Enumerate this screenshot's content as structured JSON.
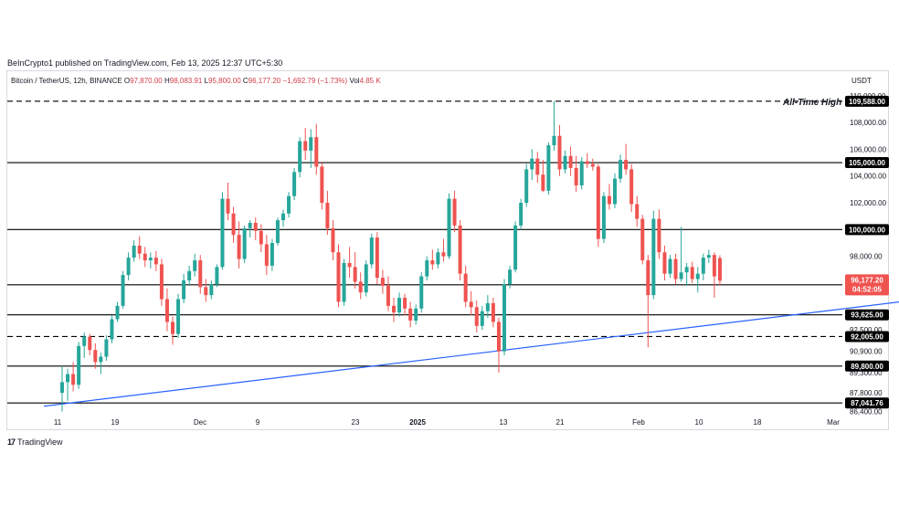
{
  "header": {
    "publisher_line": "BeInCrypto1 published on TradingView.com, Feb 13, 2025 12:37 UTC+5:30"
  },
  "legend": {
    "symbol": "Bitcoin / TetherUS, 12h, BINANCE",
    "o_label": "O",
    "o_value": "97,870.00",
    "h_label": "H",
    "h_value": "98,083.91",
    "l_label": "L",
    "l_value": "95,800.00",
    "c_label": "C",
    "c_value": "96,177.20",
    "change": "−1,692.79 (−1.73%)",
    "vol_label": "Vol",
    "vol_value": "4.85 K"
  },
  "currency": "USDT",
  "footer": {
    "logo_mark": "17",
    "logo_text": "TradingView"
  },
  "colors": {
    "up": "#26a69a",
    "down": "#ef5350",
    "trendline": "#2962ff",
    "level": "#000000",
    "price_tag": "#ef5350"
  },
  "chart_data": {
    "type": "candlestick",
    "y_range": [
      86100,
      110600
    ],
    "y_ticks": [
      "110,000.00",
      "108,000.00",
      "106,000.00",
      "104,000.00",
      "102,000.00",
      "100,000.00",
      "98,000.00",
      "92,500.00",
      "90,900.00",
      "89,300.00",
      "87,800.00",
      "86,400.00"
    ],
    "x_ticks": [
      {
        "label": "11",
        "bold": false
      },
      {
        "label": "19",
        "bold": false
      },
      {
        "label": "Dec",
        "bold": false
      },
      {
        "label": "9",
        "bold": false
      },
      {
        "label": "23",
        "bold": false
      },
      {
        "label": "2025",
        "bold": true
      },
      {
        "label": "13",
        "bold": false
      },
      {
        "label": "21",
        "bold": false
      },
      {
        "label": "Feb",
        "bold": false
      },
      {
        "label": "10",
        "bold": false
      },
      {
        "label": "18",
        "bold": false
      },
      {
        "label": "Mar",
        "bold": false
      }
    ],
    "levels": [
      {
        "value": 109588.0,
        "label": "109,588.00",
        "style": "dashed"
      },
      {
        "value": 105000.0,
        "label": "105,000.00",
        "style": "solid"
      },
      {
        "value": 100000.0,
        "label": "100,000.00",
        "style": "solid"
      },
      {
        "value": 95869.29,
        "label": "95,869.29",
        "style": "solid"
      },
      {
        "value": 93625.0,
        "label": "93,625.00",
        "style": "solid"
      },
      {
        "value": 92005.0,
        "label": "92,005.00",
        "style": "dashed"
      },
      {
        "value": 89800.0,
        "label": "89,800.00",
        "style": "solid"
      },
      {
        "value": 87041.76,
        "label": "87,041.76",
        "style": "solid"
      }
    ],
    "annotation": "All-Time High",
    "last_price": {
      "value": 96177.2,
      "label": "96,177.20",
      "countdown": "04:52:05"
    },
    "trendline": {
      "from": {
        "date": "2024-11-11",
        "price": 86800
      },
      "to": {
        "date": "2025-02-21",
        "price": 97300
      }
    },
    "candles": [
      [
        87800,
        89800,
        86400,
        88600
      ],
      [
        88600,
        89600,
        87200,
        89200
      ],
      [
        89200,
        90100,
        87900,
        88400
      ],
      [
        88400,
        91600,
        88100,
        91300
      ],
      [
        91300,
        92300,
        90400,
        92000
      ],
      [
        92000,
        92200,
        90600,
        91000
      ],
      [
        91000,
        91500,
        89600,
        90100
      ],
      [
        90100,
        90800,
        89200,
        90500
      ],
      [
        90500,
        92100,
        90200,
        91800
      ],
      [
        91800,
        93600,
        91500,
        93300
      ],
      [
        93300,
        94600,
        93100,
        94300
      ],
      [
        94300,
        96900,
        94100,
        96600
      ],
      [
        96600,
        98300,
        96200,
        97900
      ],
      [
        97900,
        99200,
        97600,
        98800
      ],
      [
        98800,
        99500,
        97800,
        98200
      ],
      [
        98200,
        98700,
        97200,
        97700
      ],
      [
        97700,
        98300,
        97100,
        97900
      ],
      [
        97900,
        98400,
        96900,
        97400
      ],
      [
        97400,
        97800,
        94300,
        94800
      ],
      [
        94800,
        95600,
        92400,
        93100
      ],
      [
        93100,
        93500,
        91400,
        92200
      ],
      [
        92200,
        95200,
        91900,
        94800
      ],
      [
        94800,
        96700,
        94500,
        96200
      ],
      [
        96200,
        97300,
        95800,
        96900
      ],
      [
        96900,
        98200,
        96500,
        97700
      ],
      [
        97700,
        98100,
        95200,
        95700
      ],
      [
        95700,
        96300,
        94600,
        95100
      ],
      [
        95100,
        96200,
        94800,
        95900
      ],
      [
        95900,
        97400,
        95700,
        97200
      ],
      [
        97200,
        102800,
        97000,
        102300
      ],
      [
        102300,
        103500,
        100700,
        101200
      ],
      [
        101200,
        101700,
        99000,
        99600
      ],
      [
        99600,
        100600,
        97100,
        97800
      ],
      [
        97800,
        100300,
        97500,
        100100
      ],
      [
        100100,
        100700,
        99400,
        100500
      ],
      [
        100500,
        100900,
        99200,
        99900
      ],
      [
        99900,
        100400,
        98300,
        98900
      ],
      [
        98900,
        99600,
        96600,
        97300
      ],
      [
        97300,
        99300,
        96900,
        99000
      ],
      [
        99000,
        100900,
        98800,
        100700
      ],
      [
        100700,
        101500,
        100200,
        101200
      ],
      [
        101200,
        102800,
        100900,
        102500
      ],
      [
        102500,
        104600,
        102200,
        104300
      ],
      [
        104300,
        106900,
        103900,
        106600
      ],
      [
        106600,
        107600,
        105200,
        105900
      ],
      [
        105900,
        107500,
        104600,
        106900
      ],
      [
        106900,
        107900,
        104100,
        104700
      ],
      [
        104700,
        105000,
        101500,
        102000
      ],
      [
        102000,
        102900,
        99600,
        100100
      ],
      [
        100100,
        100700,
        97700,
        98300
      ],
      [
        98300,
        98900,
        94200,
        94600
      ],
      [
        94600,
        97800,
        94300,
        97500
      ],
      [
        97500,
        98700,
        96400,
        97200
      ],
      [
        97200,
        98300,
        95600,
        96100
      ],
      [
        96100,
        96800,
        94800,
        95300
      ],
      [
        95300,
        97700,
        95000,
        97400
      ],
      [
        97400,
        99700,
        97100,
        99400
      ],
      [
        99400,
        99800,
        95900,
        96400
      ],
      [
        96400,
        97000,
        95200,
        95800
      ],
      [
        95800,
        96500,
        93900,
        94300
      ],
      [
        94300,
        94900,
        93100,
        93800
      ],
      [
        93800,
        95300,
        93500,
        94900
      ],
      [
        94900,
        95200,
        93600,
        94100
      ],
      [
        94100,
        94600,
        92700,
        93200
      ],
      [
        93200,
        94400,
        92900,
        94100
      ],
      [
        94100,
        96800,
        93800,
        96500
      ],
      [
        96500,
        98000,
        96200,
        97700
      ],
      [
        97700,
        98500,
        97000,
        97400
      ],
      [
        97400,
        98600,
        97100,
        98300
      ],
      [
        98300,
        99300,
        97600,
        98000
      ],
      [
        98000,
        102700,
        97800,
        102300
      ],
      [
        102300,
        102900,
        99800,
        100300
      ],
      [
        100300,
        100700,
        96200,
        96700
      ],
      [
        96700,
        97300,
        94200,
        94600
      ],
      [
        94600,
        95400,
        93600,
        94200
      ],
      [
        94200,
        94700,
        92300,
        92800
      ],
      [
        92800,
        94300,
        92500,
        93900
      ],
      [
        93900,
        95100,
        93400,
        94500
      ],
      [
        94500,
        94900,
        92700,
        93100
      ],
      [
        93100,
        93400,
        89300,
        90900
      ],
      [
        90900,
        96300,
        90600,
        95900
      ],
      [
        95900,
        97300,
        95600,
        97000
      ],
      [
        97000,
        100600,
        96800,
        100300
      ],
      [
        100300,
        102300,
        100000,
        102000
      ],
      [
        102000,
        104900,
        101700,
        104500
      ],
      [
        104500,
        106000,
        103700,
        105300
      ],
      [
        105300,
        105800,
        103500,
        104100
      ],
      [
        104100,
        105200,
        102800,
        102900
      ],
      [
        102900,
        106500,
        102600,
        106300
      ],
      [
        106300,
        109600,
        105900,
        107000
      ],
      [
        107000,
        107800,
        104000,
        104500
      ],
      [
        104500,
        105900,
        104200,
        105500
      ],
      [
        105500,
        106200,
        104000,
        104600
      ],
      [
        104600,
        105500,
        102800,
        103300
      ],
      [
        103300,
        105400,
        103000,
        105100
      ],
      [
        105100,
        105700,
        104600,
        104900
      ],
      [
        104900,
        105300,
        104400,
        104700
      ],
      [
        104700,
        104900,
        98700,
        99300
      ],
      [
        99300,
        102800,
        99000,
        102500
      ],
      [
        102500,
        103400,
        101500,
        101900
      ],
      [
        101900,
        104200,
        101600,
        103800
      ],
      [
        103800,
        105600,
        103500,
        105200
      ],
      [
        105200,
        106400,
        104100,
        104500
      ],
      [
        104500,
        104900,
        101300,
        101900
      ],
      [
        101900,
        102500,
        100200,
        100800
      ],
      [
        100800,
        101100,
        97400,
        97700
      ],
      [
        97700,
        98100,
        91200,
        95100
      ],
      [
        95100,
        101400,
        94800,
        100800
      ],
      [
        100800,
        101500,
        97800,
        98300
      ],
      [
        98300,
        98800,
        96200,
        96700
      ],
      [
        96700,
        98100,
        96400,
        97800
      ],
      [
        97800,
        98200,
        95900,
        96300
      ],
      [
        96300,
        100200,
        96100,
        96800
      ],
      [
        96800,
        97500,
        95800,
        97200
      ],
      [
        97200,
        97600,
        96000,
        96300
      ],
      [
        96300,
        97200,
        95300,
        96700
      ],
      [
        96700,
        98200,
        96200,
        97900
      ],
      [
        97900,
        98500,
        97500,
        98100
      ],
      [
        98100,
        98300,
        94900,
        96500
      ],
      [
        97870,
        98083.91,
        95800,
        96177.2
      ]
    ]
  }
}
